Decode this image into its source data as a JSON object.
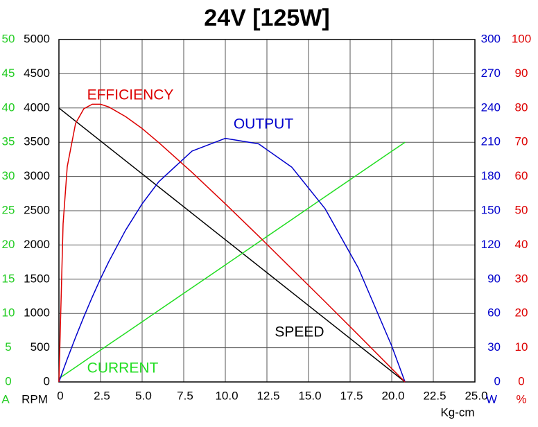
{
  "chart_data": {
    "type": "line",
    "title": "24V [125W]",
    "x_label": "Kg-cm",
    "x": [
      0,
      0.25,
      0.5,
      1,
      1.5,
      2,
      2.5,
      3,
      4,
      5,
      6,
      8,
      10,
      12,
      14,
      16,
      18,
      20,
      20.8
    ],
    "xlim": [
      0,
      25
    ],
    "xticks": [
      0,
      2.5,
      {
        "value": 5,
        "label": "5.0"
      },
      7.5,
      {
        "value": 10,
        "label": "10.0"
      },
      12.5,
      {
        "value": 15,
        "label": "15.0"
      },
      17.5,
      {
        "value": 20,
        "label": "20.0"
      },
      22.5,
      {
        "value": 25,
        "label": "25.0"
      }
    ],
    "axes": [
      {
        "label": "A",
        "color": "#22cc22",
        "lim": [
          0,
          50
        ],
        "ticks": [
          0,
          5,
          10,
          15,
          20,
          25,
          30,
          35,
          40,
          45,
          50
        ]
      },
      {
        "label": "RPM",
        "color": "#000000",
        "lim": [
          0,
          5000
        ],
        "ticks": [
          0,
          500,
          1000,
          1500,
          2000,
          2500,
          3000,
          3500,
          4000,
          4500,
          5000
        ]
      },
      {
        "label": "W",
        "color": "#0000cc",
        "lim": [
          0,
          300
        ],
        "ticks": [
          0,
          30,
          60,
          90,
          120,
          150,
          180,
          210,
          240,
          270,
          300
        ]
      },
      {
        "label": "%",
        "color": "#dd0000",
        "lim": [
          0,
          100
        ],
        "ticks": [
          0,
          10,
          20,
          30,
          40,
          50,
          60,
          70,
          80,
          90,
          100
        ]
      }
    ],
    "grid": true,
    "series": [
      {
        "name": "SPEED",
        "color": "#000000",
        "axis": 1,
        "values": [
          4000,
          3951.9,
          3903.8,
          3807.7,
          3711.5,
          3615.4,
          3519.2,
          3423.1,
          3230.8,
          3038.5,
          2846.2,
          2461.5,
          2076.9,
          1692.3,
          1307.7,
          923.1,
          538.5,
          153.8,
          0
        ]
      },
      {
        "name": "CURRENT",
        "color": "#22dd22",
        "axis": 0,
        "values": [
          0.5,
          0.91,
          1.33,
          2.16,
          2.99,
          3.82,
          4.65,
          5.48,
          7.13,
          8.79,
          10.45,
          13.77,
          17.09,
          20.4,
          23.72,
          27.04,
          30.36,
          33.67,
          35
        ]
      },
      {
        "name": "OUTPUT",
        "color": "#0000cc",
        "axis": 2,
        "values": [
          0,
          10.2,
          20.1,
          39.1,
          57.2,
          74.3,
          90.4,
          105.5,
          132.8,
          156.1,
          175.4,
          202.3,
          213.4,
          208.6,
          188.1,
          151.7,
          99.6,
          31.6,
          0
        ]
      },
      {
        "name": "EFFICIENCY",
        "color": "#dd0000",
        "axis": 3,
        "values": [
          0,
          46.2,
          62.9,
          75.5,
          79.8,
          81.1,
          81.1,
          80.3,
          77.5,
          74.0,
          69.9,
          61.2,
          52.0,
          42.6,
          33.0,
          23.4,
          13.7,
          3.9,
          0
        ]
      }
    ]
  }
}
